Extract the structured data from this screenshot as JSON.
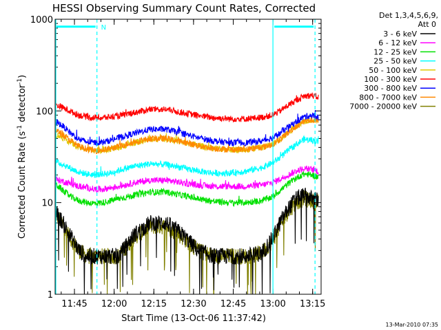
{
  "chart_data": {
    "type": "line",
    "title": "HESSI Observing Summary Count Rates, Corrected",
    "xlabel": "Start Time (13-Oct-06 11:37:42)",
    "ylabel_parts": [
      "Corrected Count Rate (s",
      "-1",
      " detector",
      "-1",
      ")"
    ],
    "yscale": "log",
    "ylim": [
      1,
      1000
    ],
    "xlim_minutes": [
      0,
      100.5
    ],
    "x_unit": "minutes after start time",
    "x_ticks": [
      {
        "label": "11:45",
        "min": 7.3
      },
      {
        "label": "12:00",
        "min": 22.3
      },
      {
        "label": "12:15",
        "min": 37.3
      },
      {
        "label": "12:30",
        "min": 52.3
      },
      {
        "label": "12:45",
        "min": 67.3
      },
      {
        "label": "13:00",
        "min": 82.3
      },
      {
        "label": "13:15",
        "min": 97.3
      }
    ],
    "y_ticks": [
      {
        "label": "1",
        "value": 1
      },
      {
        "label": "10",
        "value": 10
      },
      {
        "label": "100",
        "value": 100
      },
      {
        "label": "1000",
        "value": 1000
      }
    ],
    "legend": {
      "position": "outside-right",
      "header": [
        "Det 1,3,4,5,6,9,",
        "Att 0"
      ]
    },
    "series": [
      {
        "name": "3 - 6 keV",
        "color": "#000000",
        "x": [
          0,
          3,
          6,
          9,
          12,
          15,
          18,
          21,
          24,
          30,
          36,
          42,
          48,
          54,
          60,
          66,
          72,
          78,
          82,
          85,
          88,
          91,
          94,
          97,
          99.5
        ],
        "y": [
          8,
          6,
          4.2,
          3,
          2.6,
          2.6,
          2.6,
          2.6,
          2.6,
          4.5,
          6,
          6,
          4.5,
          3,
          2.6,
          2.6,
          2.6,
          2.8,
          4,
          6,
          8.5,
          11,
          12,
          11,
          10.5
        ]
      },
      {
        "name": "6 - 12 keV",
        "color": "#ff00ff",
        "x": [
          0,
          3,
          6,
          9,
          12,
          15,
          18,
          21,
          24,
          30,
          36,
          42,
          48,
          54,
          60,
          66,
          72,
          78,
          82,
          85,
          88,
          91,
          94,
          97,
          99.5
        ],
        "y": [
          18,
          17,
          16,
          15,
          14.5,
          14,
          14,
          14.5,
          15,
          16.5,
          17.5,
          17.5,
          16.5,
          15.5,
          15,
          15,
          15,
          15.5,
          16.5,
          18,
          20,
          22,
          23.5,
          23,
          22
        ]
      },
      {
        "name": "12 - 25 keV",
        "color": "#00e000",
        "x": [
          0,
          3,
          6,
          9,
          12,
          15,
          18,
          21,
          24,
          30,
          36,
          42,
          48,
          54,
          60,
          66,
          72,
          78,
          82,
          85,
          88,
          91,
          94,
          97,
          99.5
        ],
        "y": [
          16,
          13.5,
          11.5,
          10.5,
          10,
          9.8,
          10,
          10.5,
          11,
          12,
          13,
          13,
          12,
          11,
          10.3,
          10,
          10,
          10.5,
          11.5,
          13.5,
          16,
          18.5,
          20.5,
          20,
          19
        ]
      },
      {
        "name": "25 - 50 keV",
        "color": "#00ffff",
        "x": [
          0,
          3,
          6,
          9,
          12,
          15,
          18,
          21,
          24,
          30,
          36,
          42,
          48,
          54,
          60,
          66,
          72,
          78,
          82,
          85,
          88,
          91,
          94,
          97,
          99.5
        ],
        "y": [
          28,
          26,
          23.5,
          21.5,
          20.5,
          20,
          20.5,
          21,
          22.5,
          25,
          26.5,
          26,
          24,
          22,
          21,
          21,
          22,
          24,
          27,
          31,
          37,
          43,
          49,
          48,
          46
        ]
      },
      {
        "name": "50 - 100 keV",
        "color": "#e0c800",
        "x": [
          0,
          3,
          6,
          9,
          12,
          15,
          18,
          21,
          24,
          30,
          36,
          42,
          48,
          54,
          60,
          66,
          72,
          78,
          82,
          85,
          88,
          91,
          94,
          97,
          99.5
        ],
        "y": [
          56,
          51,
          45,
          40,
          38,
          37.5,
          37.5,
          38.5,
          40,
          45,
          49,
          49.5,
          46,
          42,
          39,
          38,
          38,
          40,
          43,
          49,
          58,
          68,
          78,
          80,
          77
        ]
      },
      {
        "name": "100 - 300 keV",
        "color": "#ff0000",
        "x": [
          0,
          3,
          6,
          9,
          12,
          15,
          18,
          21,
          24,
          30,
          36,
          42,
          48,
          54,
          60,
          66,
          72,
          78,
          82,
          85,
          88,
          91,
          94,
          97,
          99.5
        ],
        "y": [
          118,
          108,
          98,
          90,
          86,
          84,
          84,
          86,
          88,
          96,
          104,
          104,
          96,
          89,
          84,
          82,
          82,
          85,
          90,
          100,
          115,
          130,
          145,
          148,
          140
        ]
      },
      {
        "name": "300 - 800 keV",
        "color": "#0000ff",
        "x": [
          0,
          3,
          6,
          9,
          12,
          15,
          18,
          21,
          24,
          30,
          36,
          42,
          48,
          54,
          60,
          66,
          72,
          78,
          82,
          85,
          88,
          91,
          94,
          97,
          99.5
        ],
        "y": [
          78,
          68,
          57,
          49,
          46,
          45,
          45.5,
          48,
          51,
          57,
          63,
          63,
          57,
          51,
          47,
          45,
          45,
          47,
          51,
          57,
          66,
          76,
          86,
          90,
          85
        ]
      },
      {
        "name": "800 - 7000 keV",
        "color": "#ff8800",
        "x": [
          0,
          3,
          6,
          9,
          12,
          15,
          18,
          21,
          24,
          30,
          36,
          42,
          48,
          54,
          60,
          66,
          72,
          78,
          82,
          85,
          88,
          91,
          94,
          97,
          99.5
        ],
        "y": [
          62,
          55,
          47,
          41,
          38.5,
          37,
          37.5,
          39,
          41,
          46,
          50,
          50,
          46,
          42,
          39,
          38,
          38,
          40,
          43,
          49,
          58,
          68,
          77,
          80,
          77
        ]
      },
      {
        "name": "7000 - 20000 keV",
        "color": "#808000",
        "x": [
          0,
          3,
          6,
          9,
          12,
          15,
          18,
          21,
          24,
          30,
          36,
          42,
          48,
          54,
          60,
          66,
          72,
          78,
          82,
          85,
          88,
          91,
          94,
          97,
          99.5
        ],
        "y": [
          7.5,
          5.8,
          4,
          3,
          2.6,
          2.6,
          2.6,
          2.6,
          2.6,
          4.2,
          5.5,
          5.5,
          4.2,
          3,
          2.6,
          2.6,
          2.6,
          2.8,
          3.8,
          5.5,
          8,
          10,
          11,
          10.5,
          10
        ]
      }
    ],
    "markers": {
      "color": "#00ffff",
      "solid_vertical_min": [
        0,
        82.3
      ],
      "dashed_vertical_min": [
        15.8,
        98.2
      ],
      "bars": [
        {
          "from_min": 0,
          "to_min": 15.8,
          "value": 830,
          "label": "N"
        },
        {
          "from_min": 82.3,
          "to_min": 98.2,
          "value": 830
        }
      ]
    }
  },
  "footer": {
    "timestamp": "13-Mar-2010 07:35"
  }
}
